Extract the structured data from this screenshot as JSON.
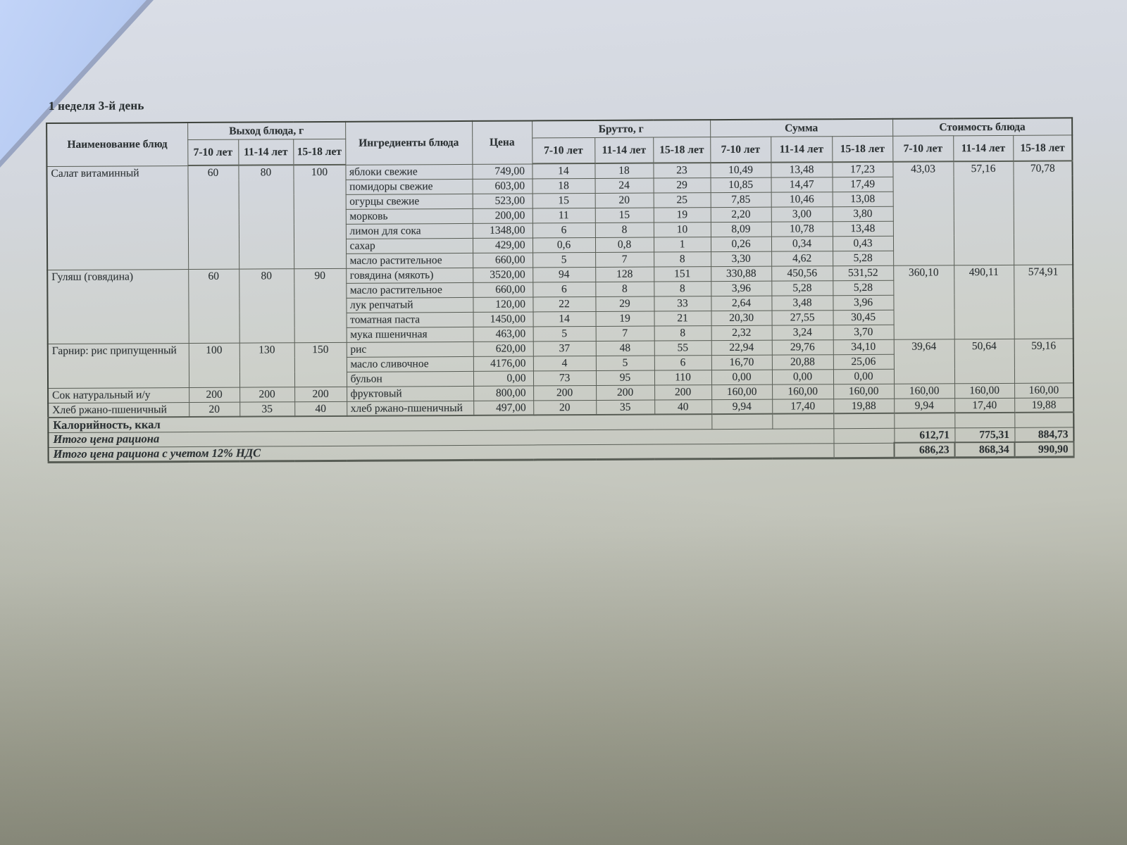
{
  "page_title": "1 неделя 3-й день",
  "colors": {
    "ink": "#2e3436",
    "paper_top": "#dadee7",
    "paper_bottom": "#8d8e80",
    "fold_blue": "#b9cdf3"
  },
  "table": {
    "headers": {
      "dish": "Наименование блюд",
      "output": "Выход блюда, г",
      "ingredients": "Ингредиенты блюда",
      "price": "Цена",
      "brutto": "Брутто, г",
      "sum": "Сумма",
      "cost": "Стоимость блюда",
      "age_groups": [
        "7-10 лет",
        "11-14 лет",
        "15-18 лет"
      ]
    },
    "dishes": [
      {
        "name": "Салат витаминный",
        "output": [
          "60",
          "80",
          "100"
        ],
        "cost": [
          "43,03",
          "57,16",
          "70,78"
        ],
        "ingredients": [
          {
            "name": "яблоки свежие",
            "price": "749,00",
            "brutto": [
              "14",
              "18",
              "23"
            ],
            "sum": [
              "10,49",
              "13,48",
              "17,23"
            ]
          },
          {
            "name": "помидоры свежие",
            "price": "603,00",
            "brutto": [
              "18",
              "24",
              "29"
            ],
            "sum": [
              "10,85",
              "14,47",
              "17,49"
            ]
          },
          {
            "name": "огурцы свежие",
            "price": "523,00",
            "brutto": [
              "15",
              "20",
              "25"
            ],
            "sum": [
              "7,85",
              "10,46",
              "13,08"
            ]
          },
          {
            "name": "морковь",
            "price": "200,00",
            "brutto": [
              "11",
              "15",
              "19"
            ],
            "sum": [
              "2,20",
              "3,00",
              "3,80"
            ]
          },
          {
            "name": "лимон для сока",
            "price": "1348,00",
            "brutto": [
              "6",
              "8",
              "10"
            ],
            "sum": [
              "8,09",
              "10,78",
              "13,48"
            ]
          },
          {
            "name": "сахар",
            "price": "429,00",
            "brutto": [
              "0,6",
              "0,8",
              "1"
            ],
            "sum": [
              "0,26",
              "0,34",
              "0,43"
            ]
          },
          {
            "name": "масло растительное",
            "price": "660,00",
            "brutto": [
              "5",
              "7",
              "8"
            ],
            "sum": [
              "3,30",
              "4,62",
              "5,28"
            ]
          }
        ]
      },
      {
        "name": "Гуляш (говядина)",
        "output": [
          "60",
          "80",
          "90"
        ],
        "cost": [
          "360,10",
          "490,11",
          "574,91"
        ],
        "ingredients": [
          {
            "name": "говядина (мякоть)",
            "price": "3520,00",
            "brutto": [
              "94",
              "128",
              "151"
            ],
            "sum": [
              "330,88",
              "450,56",
              "531,52"
            ]
          },
          {
            "name": "масло растительное",
            "price": "660,00",
            "brutto": [
              "6",
              "8",
              "8"
            ],
            "sum": [
              "3,96",
              "5,28",
              "5,28"
            ]
          },
          {
            "name": "лук репчатый",
            "price": "120,00",
            "brutto": [
              "22",
              "29",
              "33"
            ],
            "sum": [
              "2,64",
              "3,48",
              "3,96"
            ]
          },
          {
            "name": "томатная паста",
            "price": "1450,00",
            "brutto": [
              "14",
              "19",
              "21"
            ],
            "sum": [
              "20,30",
              "27,55",
              "30,45"
            ]
          },
          {
            "name": "мука пшеничная",
            "price": "463,00",
            "brutto": [
              "5",
              "7",
              "8"
            ],
            "sum": [
              "2,32",
              "3,24",
              "3,70"
            ]
          }
        ]
      },
      {
        "name": "Гарнир: рис припущенный",
        "output": [
          "100",
          "130",
          "150"
        ],
        "cost": [
          "39,64",
          "50,64",
          "59,16"
        ],
        "ingredients": [
          {
            "name": "рис",
            "price": "620,00",
            "brutto": [
              "37",
              "48",
              "55"
            ],
            "sum": [
              "22,94",
              "29,76",
              "34,10"
            ]
          },
          {
            "name": "масло сливочное",
            "price": "4176,00",
            "brutto": [
              "4",
              "5",
              "6"
            ],
            "sum": [
              "16,70",
              "20,88",
              "25,06"
            ]
          },
          {
            "name": "бульон",
            "price": "0,00",
            "brutto": [
              "73",
              "95",
              "110"
            ],
            "sum": [
              "0,00",
              "0,00",
              "0,00"
            ]
          }
        ]
      },
      {
        "name": "Сок натуральный и/у",
        "output": [
          "200",
          "200",
          "200"
        ],
        "cost": [
          "160,00",
          "160,00",
          "160,00"
        ],
        "ingredients": [
          {
            "name": "фруктовый",
            "price": "800,00",
            "brutto": [
              "200",
              "200",
              "200"
            ],
            "sum": [
              "160,00",
              "160,00",
              "160,00"
            ]
          }
        ]
      },
      {
        "name": "Хлеб ржано-пшеничный",
        "output": [
          "20",
          "35",
          "40"
        ],
        "cost": [
          "9,94",
          "17,40",
          "19,88"
        ],
        "ingredients": [
          {
            "name": "хлеб ржано-пшеничный",
            "price": "497,00",
            "brutto": [
              "20",
              "35",
              "40"
            ],
            "sum": [
              "9,94",
              "17,40",
              "19,88"
            ]
          }
        ]
      }
    ],
    "footer": {
      "calories_label": "Калорийность, ккал",
      "total_label": "Итого цена рациона",
      "total_values": [
        "612,71",
        "775,31",
        "884,73"
      ],
      "total_vat_label": "Итого цена рациона с учетом 12% НДС",
      "total_vat_values": [
        "686,23",
        "868,34",
        "990,90"
      ]
    }
  }
}
